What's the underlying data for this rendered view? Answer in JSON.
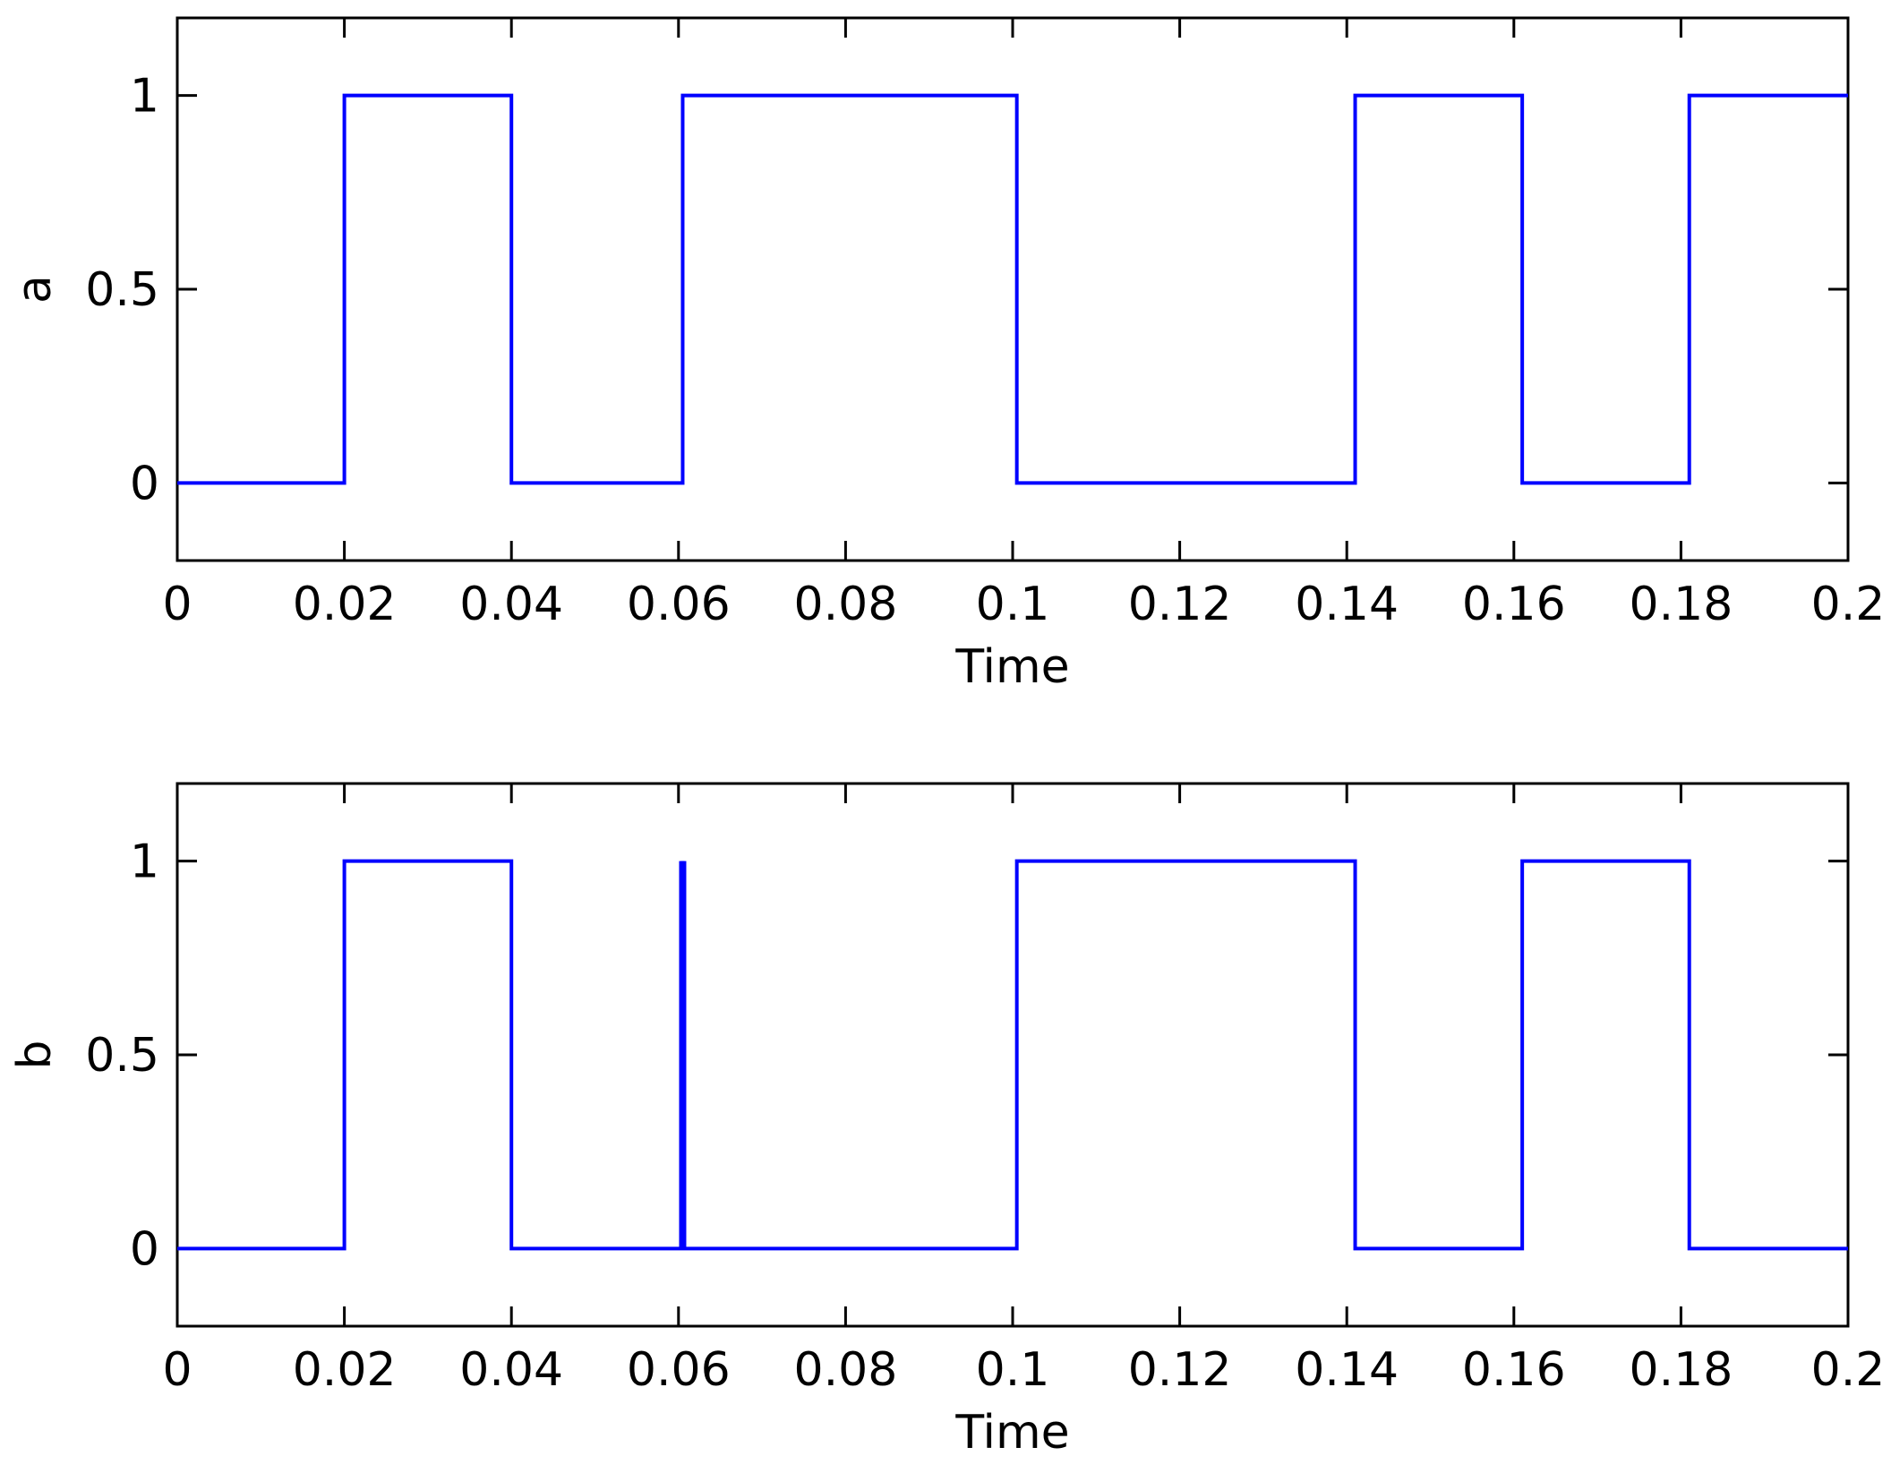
{
  "chart_data": [
    {
      "type": "line",
      "step": true,
      "title": "",
      "xlabel": "Time",
      "ylabel": "a",
      "xlim": [
        0,
        0.2
      ],
      "ylim": [
        -0.2,
        1.2
      ],
      "xticks": [
        0,
        0.02,
        0.04,
        0.06,
        0.08,
        0.1,
        0.12,
        0.14,
        0.16,
        0.18,
        0.2
      ],
      "xtick_labels": [
        "0",
        "0.02",
        "0.04",
        "0.06",
        "0.08",
        "0.1",
        "0.12",
        "0.14",
        "0.16",
        "0.18",
        "0.2"
      ],
      "yticks": [
        0,
        0.5,
        1
      ],
      "ytick_labels": [
        "0",
        "0.5",
        "1"
      ],
      "grid": false,
      "series": [
        {
          "color": "#0000ff",
          "x": [
            0,
            0.02,
            0.02,
            0.04,
            0.04,
            0.0605,
            0.0605,
            0.1005,
            0.1005,
            0.141,
            0.141,
            0.161,
            0.161,
            0.181,
            0.181,
            0.2
          ],
          "y": [
            0,
            0,
            1,
            1,
            0,
            0,
            1,
            1,
            0,
            0,
            1,
            1,
            0,
            0,
            1,
            1
          ]
        }
      ]
    },
    {
      "type": "line",
      "step": true,
      "title": "",
      "xlabel": "Time",
      "ylabel": "b",
      "xlim": [
        0,
        0.2
      ],
      "ylim": [
        -0.2,
        1.2
      ],
      "xticks": [
        0,
        0.02,
        0.04,
        0.06,
        0.08,
        0.1,
        0.12,
        0.14,
        0.16,
        0.18,
        0.2
      ],
      "xtick_labels": [
        "0",
        "0.02",
        "0.04",
        "0.06",
        "0.08",
        "0.1",
        "0.12",
        "0.14",
        "0.16",
        "0.18",
        "0.2"
      ],
      "yticks": [
        0,
        0.5,
        1
      ],
      "ytick_labels": [
        "0",
        "0.5",
        "1"
      ],
      "grid": false,
      "series": [
        {
          "color": "#0000ff",
          "x": [
            0,
            0.02,
            0.02,
            0.04,
            0.04,
            0.0605,
            0.0605,
            0.0605,
            0.0605,
            0.1005,
            0.1005,
            0.141,
            0.141,
            0.161,
            0.161,
            0.181,
            0.181,
            0.2
          ],
          "y": [
            0,
            0,
            1,
            1,
            0,
            0,
            1,
            0,
            0,
            0,
            1,
            1,
            0,
            0,
            1,
            1,
            0,
            0
          ]
        }
      ],
      "glitch_at_x": 0.0605
    }
  ]
}
